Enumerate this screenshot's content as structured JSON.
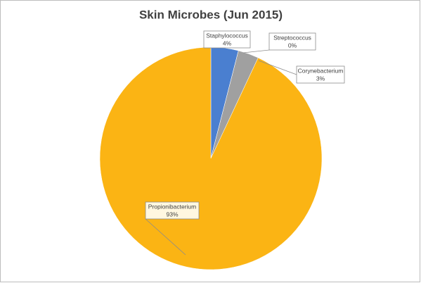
{
  "chart_data": {
    "type": "pie",
    "title": "Skin Microbes (Jun 2015)",
    "categories": [
      "Staphylococcus",
      "Streptococcus",
      "Corynebacterium",
      "Propionibacterium"
    ],
    "values": [
      4,
      0,
      3,
      93
    ],
    "value_labels": [
      "4%",
      "0%",
      "3%",
      "93%"
    ],
    "colors": [
      "#4a7fd0",
      "#ed7d31",
      "#a0a0a0",
      "#fbb414"
    ]
  }
}
